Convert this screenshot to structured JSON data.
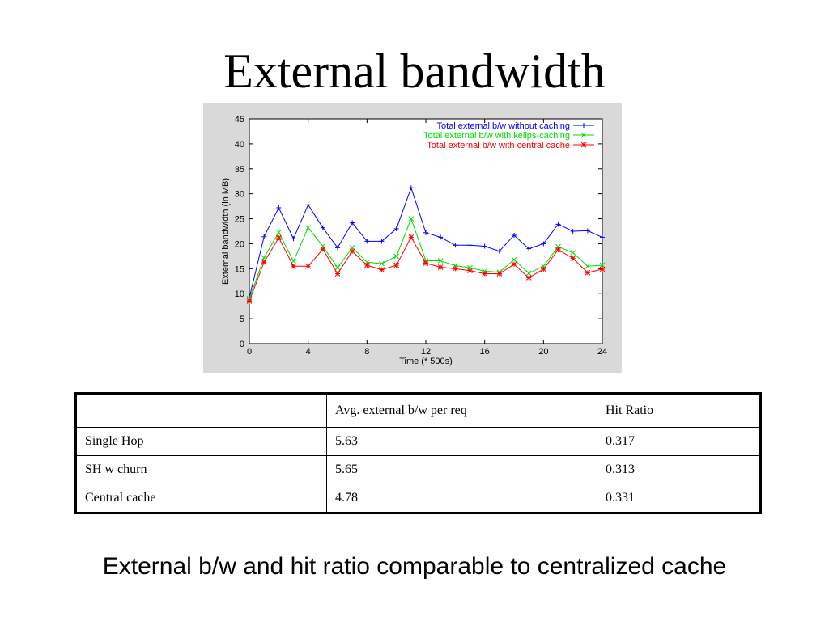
{
  "slide": {
    "title": "External bandwidth",
    "caption": "External b/w and hit ratio comparable to centralized cache"
  },
  "chart_data": {
    "type": "line",
    "title": "",
    "xlabel": "Time (* 500s)",
    "ylabel": "External bandwidth (in MB)",
    "xlim": [
      0,
      24
    ],
    "ylim": [
      0,
      45
    ],
    "xticks": [
      0,
      4,
      8,
      12,
      16,
      20,
      24
    ],
    "yticks": [
      0,
      5,
      10,
      15,
      20,
      25,
      30,
      35,
      40,
      45
    ],
    "grid": false,
    "legend_position": "top-right",
    "x": [
      0,
      1,
      2,
      3,
      4,
      5,
      6,
      7,
      8,
      9,
      10,
      11,
      12,
      13,
      14,
      15,
      16,
      17,
      18,
      19,
      20,
      21,
      22,
      23,
      24
    ],
    "series": [
      {
        "name": "Total external b/w without caching",
        "color": "#0000ff",
        "marker": "plus",
        "values": [
          9.2,
          21.4,
          27.2,
          21,
          27.8,
          23.2,
          19.2,
          24.2,
          20.5,
          20.5,
          23,
          31.2,
          22.2,
          21.3,
          19.7,
          19.7,
          19.5,
          18.5,
          21.7,
          19,
          20,
          23.9,
          22.5,
          22.6,
          21.3
        ]
      },
      {
        "name": "Total external b/w with kelips-caching",
        "color": "#00dd00",
        "marker": "x",
        "values": [
          9,
          17.2,
          22.3,
          16.5,
          23.2,
          19.5,
          15.2,
          19.2,
          16.3,
          16,
          17.5,
          25,
          16.6,
          16.6,
          15.6,
          15.2,
          14.5,
          14.3,
          16.8,
          14.1,
          15.5,
          19.4,
          18.2,
          15.5,
          15.7
        ]
      },
      {
        "name": "Total external b/w with central cache",
        "color": "#ff0000",
        "marker": "star",
        "values": [
          8.5,
          16.3,
          21.2,
          15.5,
          15.5,
          18.9,
          14,
          18.5,
          15.7,
          14.8,
          15.7,
          21.3,
          16.1,
          15.3,
          15,
          14.6,
          14,
          14,
          15.9,
          13.2,
          14.9,
          18.8,
          17.1,
          14.2,
          14.9
        ]
      }
    ]
  },
  "table": {
    "header": [
      "",
      "Avg. external b/w per req",
      "Hit Ratio"
    ],
    "rows": [
      [
        "Single Hop",
        "5.63",
        "0.317"
      ],
      [
        "SH w churn",
        "5.65",
        "0.313"
      ],
      [
        "Central cache",
        "4.78",
        "0.331"
      ]
    ]
  }
}
